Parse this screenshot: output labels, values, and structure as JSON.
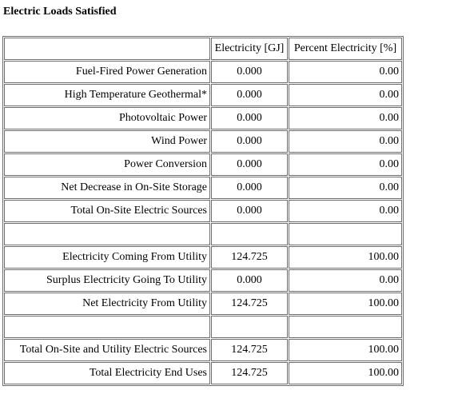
{
  "title": "Electric Loads Satisfied",
  "table": {
    "headers": [
      "",
      "Electricity [GJ]",
      "Percent Electricity [%]"
    ],
    "rows": [
      [
        "Fuel-Fired Power Generation",
        "0.000",
        "0.00"
      ],
      [
        "High Temperature Geothermal*",
        "0.000",
        "0.00"
      ],
      [
        "Photovoltaic Power",
        "0.000",
        "0.00"
      ],
      [
        "Wind Power",
        "0.000",
        "0.00"
      ],
      [
        "Power Conversion",
        "0.000",
        "0.00"
      ],
      [
        "Net Decrease in On-Site Storage",
        "0.000",
        "0.00"
      ],
      [
        "Total On-Site Electric Sources",
        "0.000",
        "0.00"
      ],
      [
        "",
        "",
        ""
      ],
      [
        "Electricity Coming From Utility",
        "124.725",
        "100.00"
      ],
      [
        "Surplus Electricity Going To Utility",
        "0.000",
        "0.00"
      ],
      [
        "Net Electricity From Utility",
        "124.725",
        "100.00"
      ],
      [
        "",
        "",
        ""
      ],
      [
        "Total On-Site and Utility Electric Sources",
        "124.725",
        "100.00"
      ],
      [
        "Total Electricity End Uses",
        "124.725",
        "100.00"
      ]
    ]
  }
}
